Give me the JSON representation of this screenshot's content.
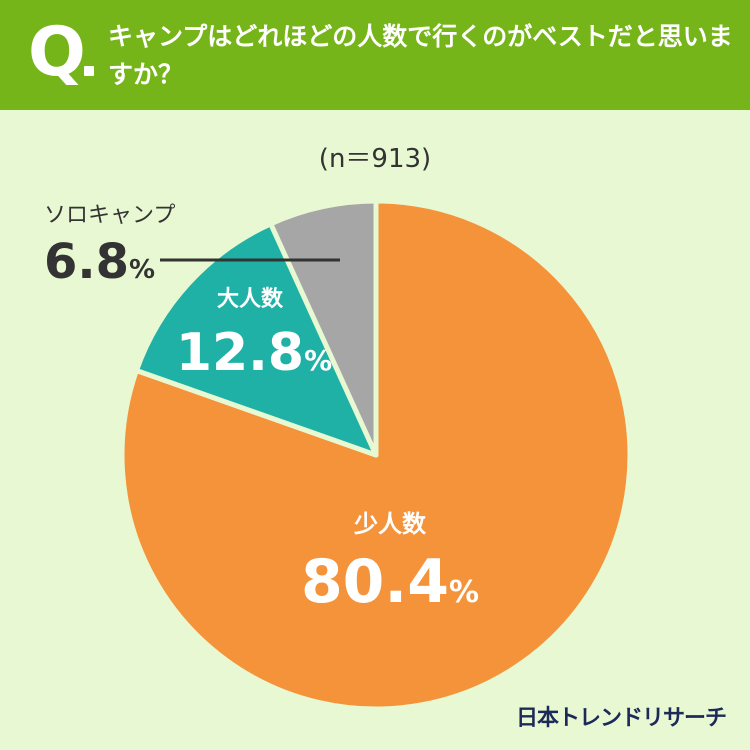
{
  "header": {
    "q_label": "Q",
    "question": "キャンプはどれほどの人数で行くのがベストだと思いますか？"
  },
  "sample_size": "(n＝913)",
  "brand": "日本トレンドリサーチ",
  "chart_data": {
    "type": "pie",
    "title": "",
    "unit": "%",
    "slices": [
      {
        "label": "少人数",
        "value": 80.4,
        "color": "#f5933a"
      },
      {
        "label": "大人数",
        "value": 12.8,
        "color": "#1fb1a6"
      },
      {
        "label": "ソロキャンプ",
        "value": 6.8,
        "color": "#a6a6a6"
      }
    ]
  }
}
